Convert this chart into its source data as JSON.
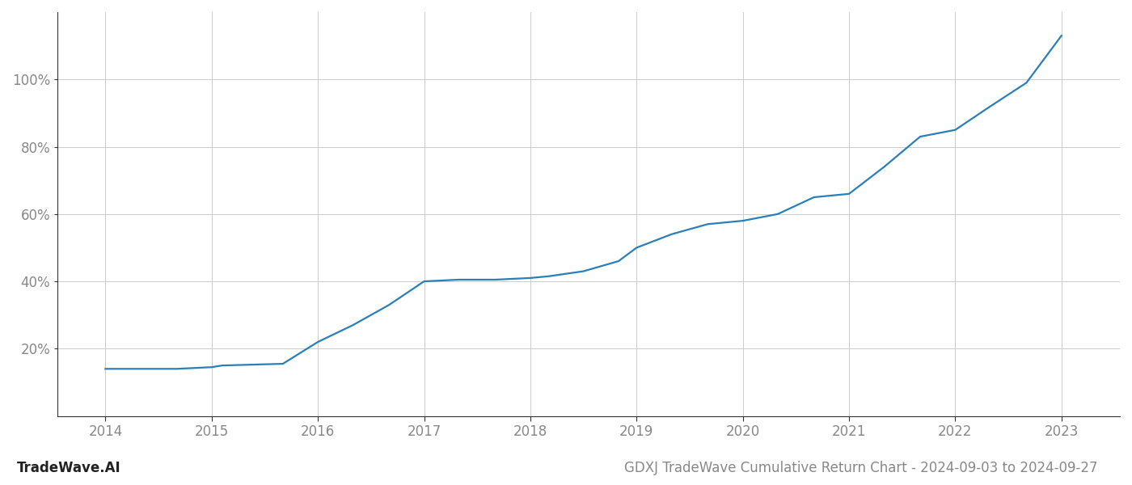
{
  "x_values": [
    2014.0,
    2014.67,
    2015.0,
    2015.1,
    2015.67,
    2016.0,
    2016.33,
    2016.67,
    2017.0,
    2017.33,
    2017.67,
    2018.0,
    2018.17,
    2018.5,
    2018.83,
    2019.0,
    2019.33,
    2019.67,
    2020.0,
    2020.33,
    2020.67,
    2021.0,
    2021.33,
    2021.67,
    2022.0,
    2022.33,
    2022.67,
    2023.0
  ],
  "y_values": [
    14.0,
    14.0,
    14.5,
    15.0,
    15.5,
    22.0,
    27.0,
    33.0,
    40.0,
    40.5,
    40.5,
    41.0,
    41.5,
    43.0,
    46.0,
    50.0,
    54.0,
    57.0,
    58.0,
    60.0,
    65.0,
    66.0,
    74.0,
    83.0,
    85.0,
    92.0,
    99.0,
    113.0
  ],
  "line_color": "#2980b9",
  "line_width": 1.6,
  "background_color": "#ffffff",
  "grid_color": "#cccccc",
  "title": "GDXJ TradeWave Cumulative Return Chart - 2024-09-03 to 2024-09-27",
  "watermark": "TradeWave.AI",
  "xlim": [
    2013.55,
    2023.55
  ],
  "ylim": [
    0,
    120
  ],
  "yticks": [
    20,
    40,
    60,
    80,
    100
  ],
  "xticks": [
    2014,
    2015,
    2016,
    2017,
    2018,
    2019,
    2020,
    2021,
    2022,
    2023
  ],
  "tick_label_color": "#888888",
  "tick_fontsize": 12,
  "title_fontsize": 12,
  "watermark_fontsize": 12,
  "spine_color": "#333333"
}
